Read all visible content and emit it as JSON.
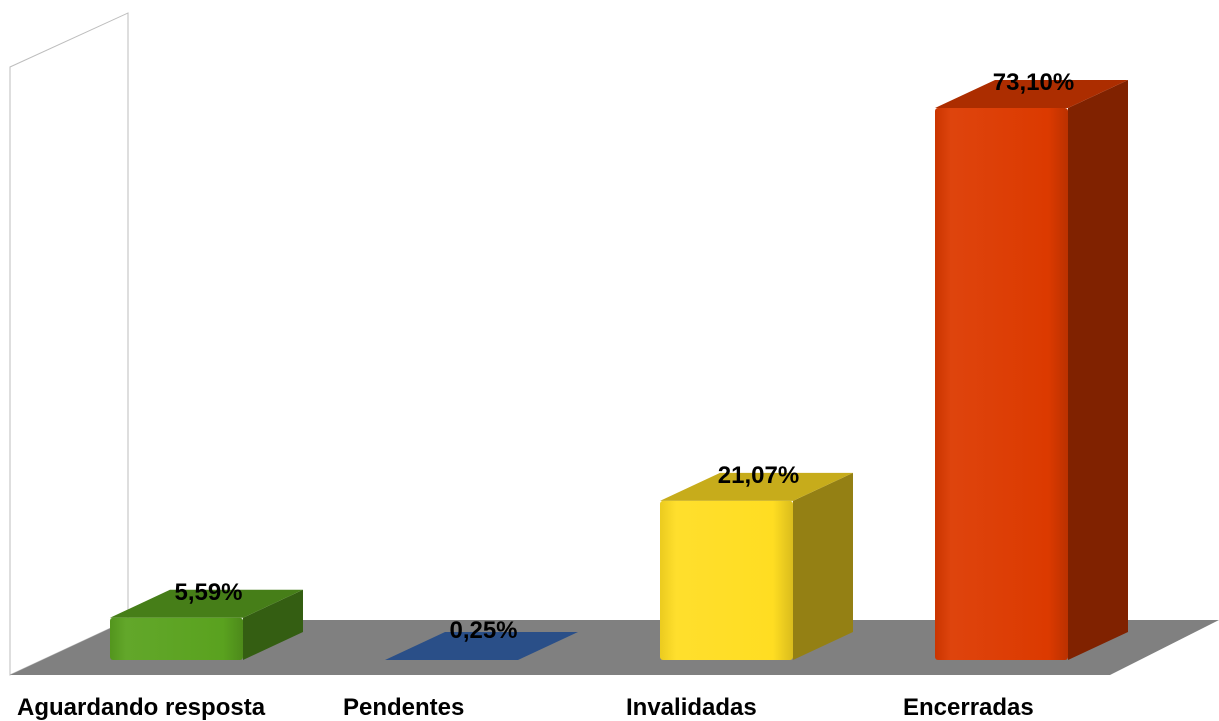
{
  "chart_data": {
    "type": "bar",
    "three_d": true,
    "categories": [
      "Aguardando resposta",
      "Pendentes",
      "Invalidadas",
      "Encerradas"
    ],
    "values": [
      5.59,
      0.25,
      21.07,
      73.1
    ],
    "value_labels": [
      "5,59%",
      "0,25%",
      "21,07%",
      "73,10%"
    ],
    "title": "",
    "xlabel": "",
    "ylabel": "",
    "ylim": [
      0,
      80
    ],
    "grid": false,
    "legend": "none",
    "colors": {
      "bars": [
        "#5aa21f",
        "#2a4f88",
        "#ffdd22",
        "#dc3a00"
      ],
      "floor": "#808080",
      "back_wall": "#ffffff",
      "wall_border": "#bdbdbd"
    }
  }
}
